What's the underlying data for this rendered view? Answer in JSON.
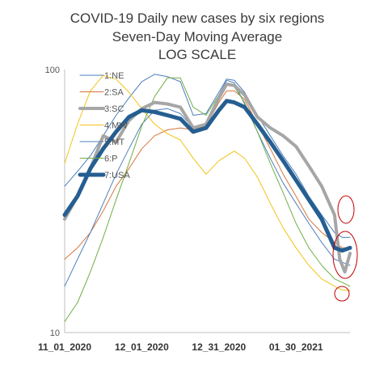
{
  "chart_data": {
    "type": "line",
    "title": "COVID-19 Daily new cases by six regions",
    "subtitle": "Seven-Day Moving Average",
    "scale_note": "LOG SCALE",
    "y_scale": "log",
    "ylim": [
      10,
      100
    ],
    "y_ticks": [
      "10",
      "100"
    ],
    "x_ticks": [
      "11_01_2020",
      "12_01_2020",
      "12_31_2020",
      "01_30_2021"
    ],
    "x_tick_days": [
      0,
      30,
      60,
      90
    ],
    "xlim_days": [
      0,
      111
    ],
    "grid": false,
    "legend_position": "upper-left",
    "annotations": [
      "red ellipse at end of 1:NE / 2:SA lines",
      "red ellipse at end of 3:SC / 7:USA lines",
      "red circle at end of 6:P / 4:MW lines"
    ],
    "series": [
      {
        "name": "1:NE",
        "color": "#4a7ebb",
        "width": 1,
        "x": [
          0,
          5,
          10,
          15,
          20,
          25,
          30,
          35,
          40,
          45,
          50,
          55,
          60,
          63,
          66,
          70,
          75,
          80,
          85,
          90,
          95,
          100,
          105,
          108,
          111
        ],
        "y": [
          36,
          41,
          47,
          56,
          67,
          78,
          90,
          96,
          94,
          90,
          67,
          68,
          82,
          92,
          91,
          82,
          67,
          56,
          47,
          40,
          33,
          28,
          24,
          23,
          23
        ]
      },
      {
        "name": "2:SA",
        "color": "#d8743a",
        "width": 1,
        "x": [
          0,
          5,
          10,
          15,
          20,
          25,
          30,
          35,
          40,
          45,
          50,
          55,
          60,
          63,
          66,
          70,
          75,
          80,
          85,
          90,
          95,
          100,
          105,
          108,
          111
        ],
        "y": [
          19,
          21,
          24,
          29,
          36,
          42,
          50,
          56,
          59,
          60,
          59,
          61,
          75,
          83,
          83,
          77,
          62,
          50,
          40,
          33,
          27,
          24,
          22,
          21,
          21
        ]
      },
      {
        "name": "3:SC",
        "color": "#a6a6a6",
        "width": 4,
        "x": [
          0,
          5,
          10,
          15,
          20,
          25,
          30,
          35,
          40,
          45,
          50,
          55,
          60,
          63,
          66,
          70,
          75,
          80,
          85,
          90,
          95,
          100,
          105,
          107,
          109,
          111
        ],
        "y": [
          27,
          33,
          42,
          56,
          53,
          64,
          71,
          75,
          74,
          72,
          60,
          62,
          78,
          88,
          87,
          80,
          66,
          60,
          56,
          51,
          43,
          36,
          28,
          19,
          17,
          20
        ]
      },
      {
        "name": "4:MW",
        "color": "#f2c314",
        "width": 1,
        "x": [
          0,
          5,
          10,
          15,
          20,
          25,
          30,
          35,
          40,
          45,
          50,
          55,
          60,
          63,
          66,
          70,
          75,
          80,
          85,
          90,
          95,
          100,
          105,
          108,
          111
        ],
        "y": [
          44,
          62,
          83,
          95,
          92,
          82,
          71,
          62,
          57,
          54,
          46,
          40,
          45,
          47,
          49,
          46,
          39,
          31,
          25,
          21,
          18,
          16,
          15,
          14.5,
          14.5
        ]
      },
      {
        "name": "5:MT",
        "color": "#4f81bd",
        "width": 1,
        "x": [
          0,
          5,
          10,
          15,
          20,
          25,
          30,
          35,
          40,
          45,
          50,
          55,
          60,
          63,
          66,
          70,
          75,
          80,
          85,
          90,
          95,
          100,
          105,
          108,
          111
        ],
        "y": [
          15,
          19,
          24,
          31,
          40,
          50,
          62,
          70,
          71,
          68,
          60,
          62,
          80,
          91,
          89,
          74,
          58,
          46,
          37,
          31,
          26,
          22,
          19,
          18.5,
          18
        ]
      },
      {
        "name": "6:P",
        "color": "#70ad47",
        "width": 1,
        "x": [
          0,
          5,
          10,
          15,
          20,
          25,
          30,
          35,
          40,
          45,
          50,
          55,
          60,
          63,
          66,
          70,
          75,
          80,
          85,
          90,
          95,
          100,
          105,
          108,
          111
        ],
        "y": [
          11,
          13,
          17,
          23,
          32,
          44,
          61,
          79,
          93,
          93,
          72,
          67,
          80,
          88,
          86,
          75,
          58,
          44,
          34,
          26,
          21,
          18,
          16,
          15.5,
          15
        ]
      },
      {
        "name": "7:USA",
        "color": "#255e91",
        "width": 5,
        "x": [
          0,
          5,
          10,
          15,
          20,
          25,
          30,
          35,
          40,
          45,
          50,
          55,
          60,
          63,
          66,
          70,
          75,
          80,
          85,
          90,
          95,
          100,
          105,
          108,
          111
        ],
        "y": [
          28,
          33,
          42,
          50,
          58,
          66,
          70,
          69,
          67,
          65,
          58,
          60,
          70,
          76,
          75,
          72,
          62,
          53,
          45,
          38,
          32,
          27,
          21,
          20.5,
          21
        ]
      }
    ]
  }
}
